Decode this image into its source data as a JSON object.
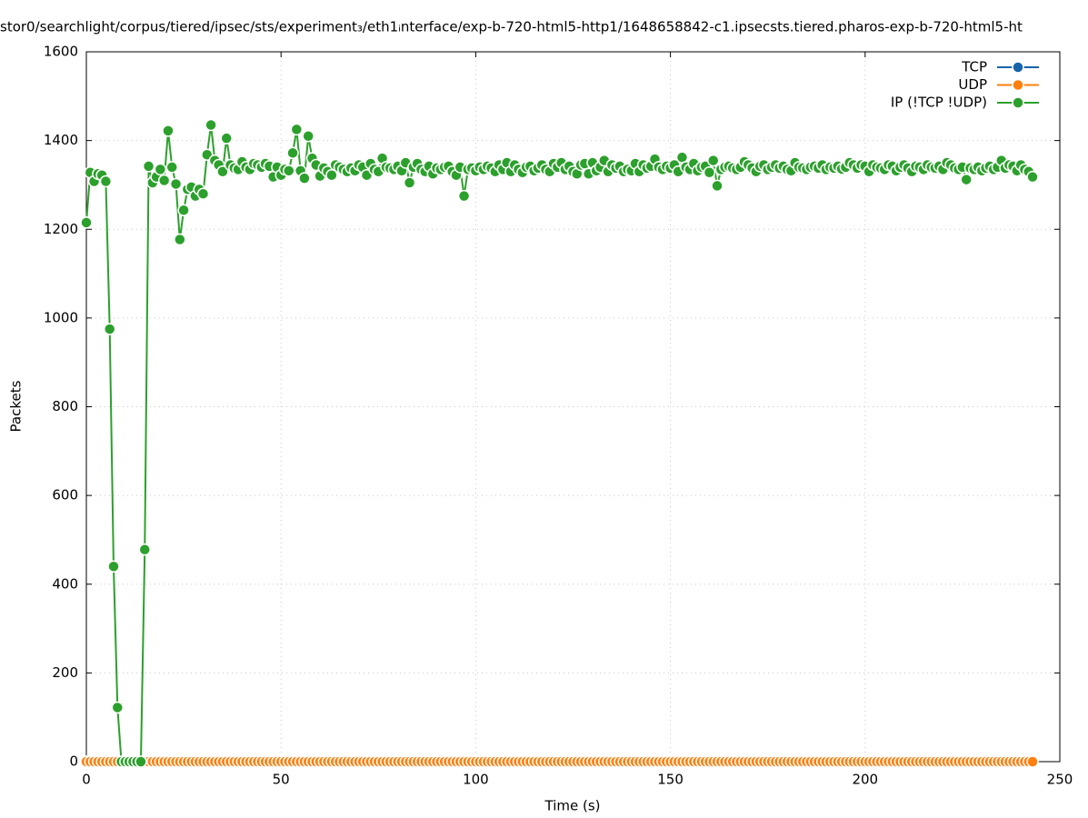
{
  "chart_data": {
    "type": "line",
    "title": "stor0/searchlight/corpus/tiered/ipsec/sts/experiment₃/eth1ᵢnterface/exp-b-720-html5-http1/1648658842-c1.ipsecsts.tiered.pharos-exp-b-720-html5-ht",
    "xlabel": "Time (s)",
    "ylabel": "Packets",
    "xlim": [
      0,
      250
    ],
    "xticks": [
      0,
      50,
      100,
      150,
      200,
      250
    ],
    "ylim": [
      0,
      1600
    ],
    "yticks": [
      0,
      200,
      400,
      600,
      800,
      1000,
      1200,
      1400,
      1600
    ],
    "grid": true,
    "legend": "top-right",
    "x": [
      0,
      1,
      2,
      3,
      4,
      5,
      6,
      7,
      8,
      9,
      10,
      11,
      12,
      13,
      14,
      15,
      16,
      17,
      18,
      19,
      20,
      21,
      22,
      23,
      24,
      25,
      26,
      27,
      28,
      29,
      30,
      31,
      32,
      33,
      34,
      35,
      36,
      37,
      38,
      39,
      40,
      41,
      42,
      43,
      44,
      45,
      46,
      47,
      48,
      49,
      50,
      51,
      52,
      53,
      54,
      55,
      56,
      57,
      58,
      59,
      60,
      61,
      62,
      63,
      64,
      65,
      66,
      67,
      68,
      69,
      70,
      71,
      72,
      73,
      74,
      75,
      76,
      77,
      78,
      79,
      80,
      81,
      82,
      83,
      84,
      85,
      86,
      87,
      88,
      89,
      90,
      91,
      92,
      93,
      94,
      95,
      96,
      97,
      98,
      99,
      100,
      101,
      102,
      103,
      104,
      105,
      106,
      107,
      108,
      109,
      110,
      111,
      112,
      113,
      114,
      115,
      116,
      117,
      118,
      119,
      120,
      121,
      122,
      123,
      124,
      125,
      126,
      127,
      128,
      129,
      130,
      131,
      132,
      133,
      134,
      135,
      136,
      137,
      138,
      139,
      140,
      141,
      142,
      143,
      144,
      145,
      146,
      147,
      148,
      149,
      150,
      151,
      152,
      153,
      154,
      155,
      156,
      157,
      158,
      159,
      160,
      161,
      162,
      163,
      164,
      165,
      166,
      167,
      168,
      169,
      170,
      171,
      172,
      173,
      174,
      175,
      176,
      177,
      178,
      179,
      180,
      181,
      182,
      183,
      184,
      185,
      186,
      187,
      188,
      189,
      190,
      191,
      192,
      193,
      194,
      195,
      196,
      197,
      198,
      199,
      200,
      201,
      202,
      203,
      204,
      205,
      206,
      207,
      208,
      209,
      210,
      211,
      212,
      213,
      214,
      215,
      216,
      217,
      218,
      219,
      220,
      221,
      222,
      223,
      224,
      225,
      226,
      227,
      228,
      229,
      230,
      231,
      232,
      233,
      234,
      235,
      236,
      237,
      238,
      239,
      240,
      241,
      242,
      243
    ],
    "series": [
      {
        "name": "TCP",
        "color": "#1764ab",
        "values": [
          0,
          0,
          0,
          0,
          0,
          0,
          0,
          0,
          0,
          0,
          0,
          0,
          0,
          0,
          0,
          0,
          0,
          0,
          0,
          0,
          0,
          0,
          0,
          0,
          0,
          0,
          0,
          0,
          0,
          0,
          0,
          0,
          0,
          0,
          0,
          0,
          0,
          0,
          0,
          0,
          0,
          0,
          0,
          0,
          0,
          0,
          0,
          0,
          0,
          0,
          0,
          0,
          0,
          0,
          0,
          0,
          0,
          0,
          0,
          0,
          0,
          0,
          0,
          0,
          0,
          0,
          0,
          0,
          0,
          0,
          0,
          0,
          0,
          0,
          0,
          0,
          0,
          0,
          0,
          0,
          0,
          0,
          0,
          0,
          0,
          0,
          0,
          0,
          0,
          0,
          0,
          0,
          0,
          0,
          0,
          0,
          0,
          0,
          0,
          0,
          0,
          0,
          0,
          0,
          0,
          0,
          0,
          0,
          0,
          0,
          0,
          0,
          0,
          0,
          0,
          0,
          0,
          0,
          0,
          0,
          0,
          0,
          0,
          0,
          0,
          0,
          0,
          0,
          0,
          0,
          0,
          0,
          0,
          0,
          0,
          0,
          0,
          0,
          0,
          0,
          0,
          0,
          0,
          0,
          0,
          0,
          0,
          0,
          0,
          0,
          0,
          0,
          0,
          0,
          0,
          0,
          0,
          0,
          0,
          0,
          0,
          0,
          0,
          0,
          0,
          0,
          0,
          0,
          0,
          0,
          0,
          0,
          0,
          0,
          0,
          0,
          0,
          0,
          0,
          0,
          0,
          0,
          0,
          0,
          0,
          0,
          0,
          0,
          0,
          0,
          0,
          0,
          0,
          0,
          0,
          0,
          0,
          0,
          0,
          0,
          0,
          0,
          0,
          0,
          0,
          0,
          0,
          0,
          0,
          0,
          0,
          0,
          0,
          0,
          0,
          0,
          0,
          0,
          0,
          0,
          0,
          0,
          0,
          0,
          0,
          0,
          0,
          0,
          0,
          0,
          0,
          0,
          0,
          0,
          0,
          0,
          0,
          0,
          0,
          0,
          0,
          0,
          0,
          0
        ]
      },
      {
        "name": "UDP",
        "color": "#ff7f0e",
        "values": [
          0,
          0,
          0,
          0,
          0,
          0,
          0,
          0,
          0,
          0,
          0,
          0,
          0,
          0,
          0,
          0,
          0,
          0,
          0,
          0,
          0,
          0,
          0,
          0,
          0,
          0,
          0,
          0,
          0,
          0,
          0,
          0,
          0,
          0,
          0,
          0,
          0,
          0,
          0,
          0,
          0,
          0,
          0,
          0,
          0,
          0,
          0,
          0,
          0,
          0,
          0,
          0,
          0,
          0,
          0,
          0,
          0,
          0,
          0,
          0,
          0,
          0,
          0,
          0,
          0,
          0,
          0,
          0,
          0,
          0,
          0,
          0,
          0,
          0,
          0,
          0,
          0,
          0,
          0,
          0,
          0,
          0,
          0,
          0,
          0,
          0,
          0,
          0,
          0,
          0,
          0,
          0,
          0,
          0,
          0,
          0,
          0,
          0,
          0,
          0,
          0,
          0,
          0,
          0,
          0,
          0,
          0,
          0,
          0,
          0,
          0,
          0,
          0,
          0,
          0,
          0,
          0,
          0,
          0,
          0,
          0,
          0,
          0,
          0,
          0,
          0,
          0,
          0,
          0,
          0,
          0,
          0,
          0,
          0,
          0,
          0,
          0,
          0,
          0,
          0,
          0,
          0,
          0,
          0,
          0,
          0,
          0,
          0,
          0,
          0,
          0,
          0,
          0,
          0,
          0,
          0,
          0,
          0,
          0,
          0,
          0,
          0,
          0,
          0,
          0,
          0,
          0,
          0,
          0,
          0,
          0,
          0,
          0,
          0,
          0,
          0,
          0,
          0,
          0,
          0,
          0,
          0,
          0,
          0,
          0,
          0,
          0,
          0,
          0,
          0,
          0,
          0,
          0,
          0,
          0,
          0,
          0,
          0,
          0,
          0,
          0,
          0,
          0,
          0,
          0,
          0,
          0,
          0,
          0,
          0,
          0,
          0,
          0,
          0,
          0,
          0,
          0,
          0,
          0,
          0,
          0,
          0,
          0,
          0,
          0,
          0,
          0,
          0,
          0,
          0,
          0,
          0,
          0,
          0,
          0,
          0,
          0,
          0,
          0,
          0,
          0,
          0,
          0,
          0
        ]
      },
      {
        "name": "IP (!TCP  !UDP)",
        "color": "#2ca02c",
        "values": [
          1215,
          1328,
          1308,
          1325,
          1322,
          1308,
          975,
          440,
          122,
          0,
          0,
          0,
          0,
          0,
          0,
          478,
          1342,
          1305,
          1318,
          1335,
          1310,
          1422,
          1340,
          1302,
          1177,
          1243,
          1290,
          1295,
          1275,
          1290,
          1280,
          1368,
          1435,
          1355,
          1345,
          1330,
          1405,
          1345,
          1338,
          1335,
          1352,
          1340,
          1335,
          1348,
          1345,
          1340,
          1348,
          1342,
          1318,
          1340,
          1322,
          1335,
          1332,
          1372,
          1425,
          1332,
          1315,
          1410,
          1360,
          1345,
          1320,
          1338,
          1330,
          1322,
          1345,
          1340,
          1335,
          1330,
          1338,
          1332,
          1345,
          1340,
          1322,
          1348,
          1335,
          1330,
          1360,
          1340,
          1338,
          1335,
          1342,
          1332,
          1350,
          1305,
          1340,
          1348,
          1335,
          1330,
          1342,
          1325,
          1338,
          1335,
          1340,
          1342,
          1330,
          1322,
          1340,
          1275,
          1335,
          1338,
          1332,
          1340,
          1335,
          1342,
          1338,
          1330,
          1345,
          1335,
          1350,
          1330,
          1345,
          1335,
          1328,
          1340,
          1342,
          1332,
          1338,
          1345,
          1335,
          1330,
          1348,
          1340,
          1350,
          1335,
          1342,
          1330,
          1325,
          1345,
          1348,
          1325,
          1350,
          1332,
          1340,
          1355,
          1330,
          1345,
          1338,
          1342,
          1330,
          1335,
          1332,
          1348,
          1330,
          1345,
          1338,
          1342,
          1358,
          1340,
          1335,
          1342,
          1338,
          1345,
          1330,
          1362,
          1340,
          1335,
          1348,
          1332,
          1340,
          1342,
          1328,
          1355,
          1298,
          1335,
          1340,
          1342,
          1338,
          1335,
          1340,
          1352,
          1345,
          1338,
          1330,
          1342,
          1345,
          1335,
          1340,
          1345,
          1338,
          1342,
          1335,
          1332,
          1350,
          1340,
          1338,
          1335,
          1340,
          1342,
          1338,
          1345,
          1335,
          1340,
          1338,
          1342,
          1336,
          1340,
          1350,
          1345,
          1338,
          1345,
          1342,
          1330,
          1345,
          1340,
          1338,
          1335,
          1345,
          1342,
          1332,
          1340,
          1345,
          1338,
          1330,
          1342,
          1340,
          1335,
          1345,
          1340,
          1338,
          1342,
          1335,
          1350,
          1345,
          1338,
          1335,
          1340,
          1312,
          1338,
          1335,
          1340,
          1332,
          1338,
          1342,
          1335,
          1340,
          1355,
          1338,
          1345,
          1342,
          1332,
          1345,
          1335,
          1330,
          1318
        ]
      }
    ]
  }
}
